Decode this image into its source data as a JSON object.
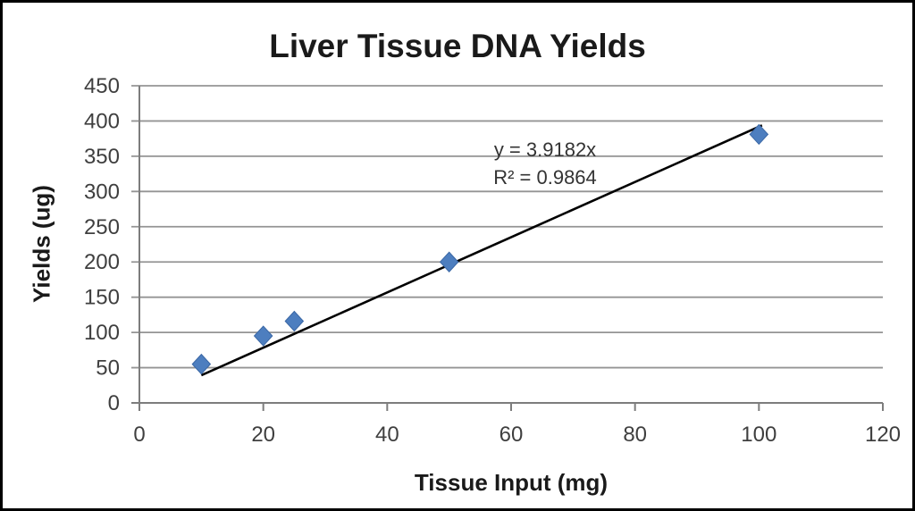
{
  "chart_data": {
    "type": "scatter",
    "title": "Liver Tissue DNA Yields",
    "xlabel": "Tissue Input (mg)",
    "ylabel": "Yields (ug)",
    "xlim": [
      0,
      120
    ],
    "ylim": [
      0,
      450
    ],
    "x_ticks": [
      0,
      20,
      40,
      60,
      80,
      100,
      120
    ],
    "y_ticks": [
      0,
      50,
      100,
      150,
      200,
      250,
      300,
      350,
      400,
      450
    ],
    "grid": "horizontal",
    "legend": "none",
    "points": [
      {
        "x": 10,
        "y": 55
      },
      {
        "x": 20,
        "y": 95
      },
      {
        "x": 25,
        "y": 116
      },
      {
        "x": 50,
        "y": 200
      },
      {
        "x": 100,
        "y": 381
      }
    ],
    "trendline": {
      "slope": 3.9182,
      "intercept": 0,
      "x_start": 10,
      "x_end": 100.5,
      "equation": "y = 3.9182x",
      "r_squared": "R² = 0.9864"
    },
    "marker": {
      "shape": "diamond",
      "fill": "#4d7ebf",
      "stroke": "#3a67a5",
      "half_size": 11
    },
    "colors": {
      "gridline": "#949494",
      "axis": "#7d7d7d",
      "tick_label": "#3f3f3f",
      "trendline": "#000000",
      "title": "#1a1a1a",
      "equation": "#333333",
      "frame_border": "#000000",
      "background": "#ffffff"
    }
  }
}
